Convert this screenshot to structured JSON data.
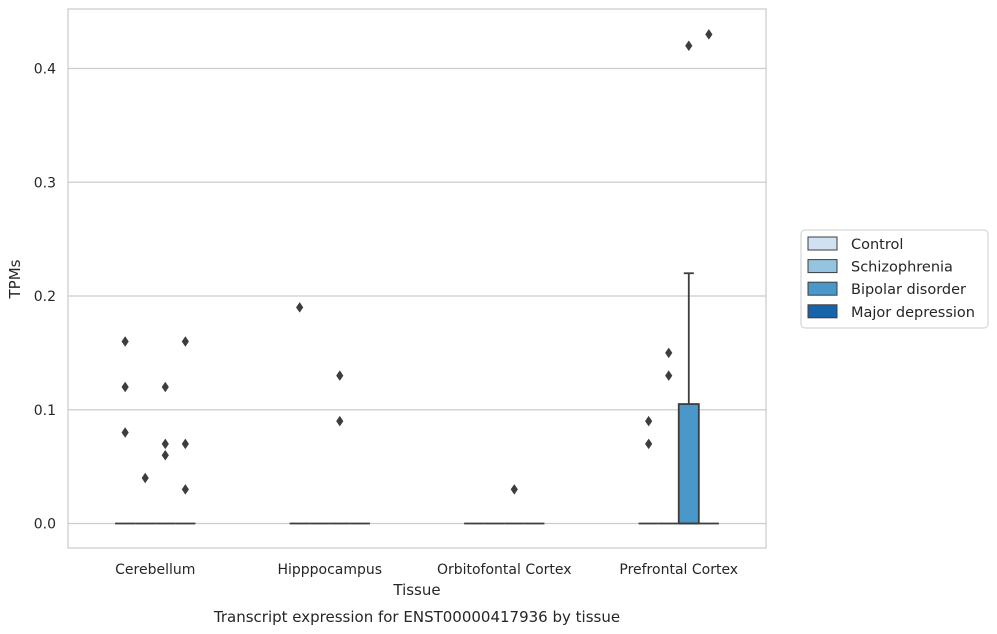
{
  "chart_data": {
    "type": "box",
    "title": "Transcript expression for ENST00000417936 by tissue",
    "xlabel": "Tissue",
    "ylabel": "TPMs",
    "ylim": [
      -0.021,
      0.452
    ],
    "yticks": [
      "0.0",
      "0.1",
      "0.2",
      "0.3",
      "0.4"
    ],
    "ytick_values": [
      0.0,
      0.1,
      0.2,
      0.3,
      0.4
    ],
    "grid": true,
    "legend_position": "right",
    "categories": [
      "Cerebellum",
      "Hipppocampus",
      "Orbitofontal Cortex",
      "Prefrontal Cortex"
    ],
    "series": [
      {
        "name": "Control",
        "color": "#d0e1f2"
      },
      {
        "name": "Schizophrenia",
        "color": "#94c4df"
      },
      {
        "name": "Bipolar disorder",
        "color": "#4a98c9"
      },
      {
        "name": "Major depression",
        "color": "#1764ab"
      }
    ],
    "boxes": [
      {
        "category": "Cerebellum",
        "series": "Control",
        "q1": 0,
        "median": 0,
        "q3": 0,
        "whisker_low": 0,
        "whisker_high": 0,
        "outliers": [
          0.16,
          0.12,
          0.08
        ]
      },
      {
        "category": "Cerebellum",
        "series": "Schizophrenia",
        "q1": 0,
        "median": 0,
        "q3": 0,
        "whisker_low": 0,
        "whisker_high": 0,
        "outliers": [
          0.04
        ]
      },
      {
        "category": "Cerebellum",
        "series": "Bipolar disorder",
        "q1": 0,
        "median": 0,
        "q3": 0,
        "whisker_low": 0,
        "whisker_high": 0,
        "outliers": [
          0.12,
          0.07,
          0.06
        ]
      },
      {
        "category": "Cerebellum",
        "series": "Major depression",
        "q1": 0,
        "median": 0,
        "q3": 0,
        "whisker_low": 0,
        "whisker_high": 0,
        "outliers": [
          0.16,
          0.07,
          0.03
        ]
      },
      {
        "category": "Hipppocampus",
        "series": "Control",
        "q1": 0,
        "median": 0,
        "q3": 0,
        "whisker_low": 0,
        "whisker_high": 0,
        "outliers": [
          0.19
        ]
      },
      {
        "category": "Hipppocampus",
        "series": "Schizophrenia",
        "q1": 0,
        "median": 0,
        "q3": 0,
        "whisker_low": 0,
        "whisker_high": 0,
        "outliers": []
      },
      {
        "category": "Hipppocampus",
        "series": "Bipolar disorder",
        "q1": 0,
        "median": 0,
        "q3": 0,
        "whisker_low": 0,
        "whisker_high": 0,
        "outliers": [
          0.13,
          0.09
        ]
      },
      {
        "category": "Hipppocampus",
        "series": "Major depression",
        "q1": 0,
        "median": 0,
        "q3": 0,
        "whisker_low": 0,
        "whisker_high": 0,
        "outliers": []
      },
      {
        "category": "Orbitofontal Cortex",
        "series": "Control",
        "q1": 0,
        "median": 0,
        "q3": 0,
        "whisker_low": 0,
        "whisker_high": 0,
        "outliers": []
      },
      {
        "category": "Orbitofontal Cortex",
        "series": "Schizophrenia",
        "q1": 0,
        "median": 0,
        "q3": 0,
        "whisker_low": 0,
        "whisker_high": 0,
        "outliers": []
      },
      {
        "category": "Orbitofontal Cortex",
        "series": "Bipolar disorder",
        "q1": 0,
        "median": 0,
        "q3": 0,
        "whisker_low": 0,
        "whisker_high": 0,
        "outliers": [
          0.03
        ]
      },
      {
        "category": "Orbitofontal Cortex",
        "series": "Major depression",
        "q1": 0,
        "median": 0,
        "q3": 0,
        "whisker_low": 0,
        "whisker_high": 0,
        "outliers": []
      },
      {
        "category": "Prefrontal Cortex",
        "series": "Control",
        "q1": 0,
        "median": 0,
        "q3": 0,
        "whisker_low": 0,
        "whisker_high": 0,
        "outliers": [
          0.09,
          0.07
        ]
      },
      {
        "category": "Prefrontal Cortex",
        "series": "Schizophrenia",
        "q1": 0,
        "median": 0,
        "q3": 0,
        "whisker_low": 0,
        "whisker_high": 0,
        "outliers": [
          0.15,
          0.13
        ]
      },
      {
        "category": "Prefrontal Cortex",
        "series": "Bipolar disorder",
        "q1": 0,
        "median": 0,
        "q3": 0.105,
        "whisker_low": 0,
        "whisker_high": 0.22,
        "outliers": [
          0.42
        ]
      },
      {
        "category": "Prefrontal Cortex",
        "series": "Major depression",
        "q1": 0,
        "median": 0,
        "q3": 0,
        "whisker_low": 0,
        "whisker_high": 0,
        "outliers": [
          0.43
        ]
      }
    ]
  }
}
